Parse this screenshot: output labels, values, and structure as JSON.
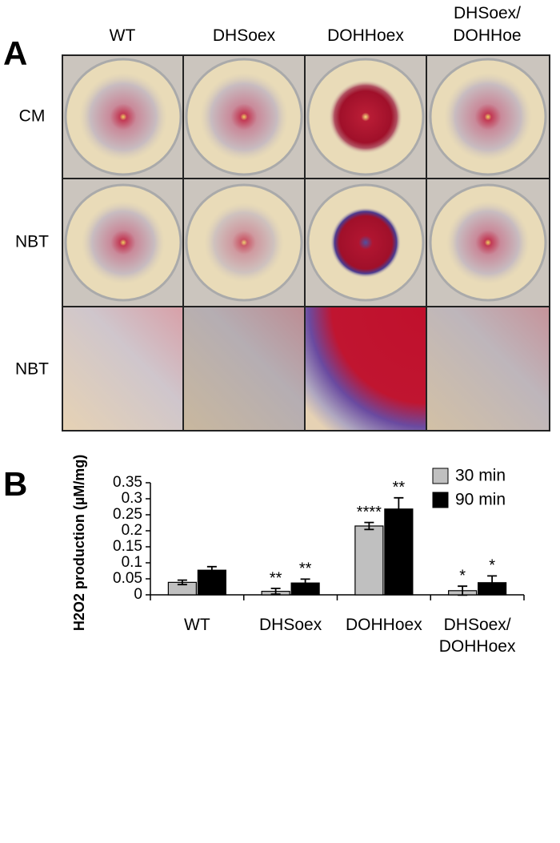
{
  "panel_a": {
    "label": "A",
    "columns": [
      "WT",
      "DHSoex",
      "DOHHoex",
      "DHSoex/\nDOHHoe"
    ],
    "rows": [
      "CM",
      "NBT",
      "NBT"
    ]
  },
  "chart_data": {
    "type": "bar",
    "panel_label": "B",
    "categories": [
      "WT",
      "DHSoex",
      "DOHHoex",
      "DHSoex/\nDOHHoex"
    ],
    "ylabel": "H2O2 production (µM/mg)",
    "ylim": [
      0,
      0.35
    ],
    "yticks": [
      0,
      0.05,
      0.1,
      0.15,
      0.2,
      0.25,
      0.3,
      0.35
    ],
    "legend": "upper right",
    "series": [
      {
        "name": "30 min",
        "color": "#c0c0c0",
        "values": [
          0.039,
          0.011,
          0.215,
          0.013
        ],
        "errors": [
          0.007,
          0.009,
          0.011,
          0.014
        ],
        "annotations": [
          null,
          "**",
          "****",
          "*"
        ]
      },
      {
        "name": "90 min",
        "color": "#000000",
        "values": [
          0.077,
          0.037,
          0.268,
          0.038
        ],
        "errors": [
          0.011,
          0.012,
          0.035,
          0.021
        ],
        "annotations": [
          null,
          "**",
          "**",
          "*"
        ]
      }
    ]
  }
}
